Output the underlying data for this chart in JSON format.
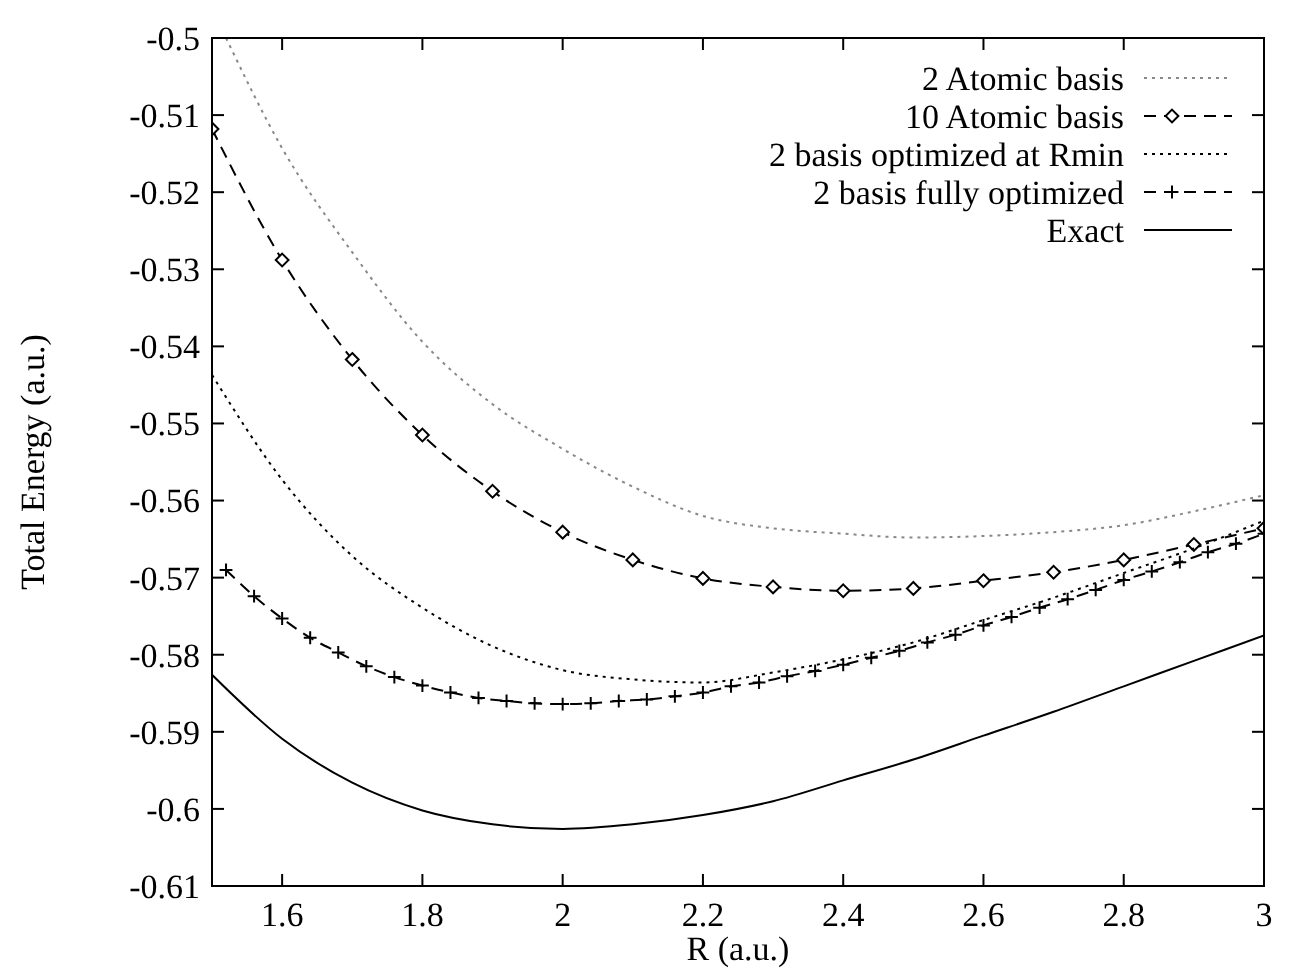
{
  "chart_data": {
    "type": "line",
    "xlabel": "R (a.u.)",
    "ylabel": "Total Energy (a.u.)",
    "xlim": [
      1.5,
      3
    ],
    "xticks": [
      1.6,
      1.8,
      2,
      2.2,
      2.4,
      2.6,
      2.8,
      3
    ],
    "ylim": [
      -0.61,
      -0.5
    ],
    "yticks": [
      -0.61,
      -0.6,
      -0.59,
      -0.58,
      -0.57,
      -0.56,
      -0.55,
      -0.54,
      -0.53,
      -0.52,
      -0.51,
      -0.5
    ],
    "grid": false,
    "legend": "top right",
    "series": [
      {
        "name": "2 Atomic basis",
        "color": "#888888",
        "line_style": "dotted",
        "marker": "none",
        "x": [
          1.52,
          1.6,
          1.7,
          1.8,
          1.9,
          2.0,
          2.1,
          2.2,
          2.3,
          2.4,
          2.5,
          2.6,
          2.7,
          2.8,
          2.9,
          3.0
        ],
        "values": [
          -0.5,
          -0.5143,
          -0.5278,
          -0.5394,
          -0.5475,
          -0.5533,
          -0.5582,
          -0.562,
          -0.5636,
          -0.5643,
          -0.5648,
          -0.5646,
          -0.5641,
          -0.5632,
          -0.5614,
          -0.5593
        ]
      },
      {
        "name": "10 Atomic basis",
        "color": "#000000",
        "line_style": "dashed",
        "marker": "diamond",
        "x": [
          1.5,
          1.6,
          1.7,
          1.8,
          1.9,
          2.0,
          2.1,
          2.2,
          2.3,
          2.4,
          2.5,
          2.6,
          2.7,
          2.8,
          2.9,
          3.0
        ],
        "values": [
          -0.5118,
          -0.5288,
          -0.5417,
          -0.5515,
          -0.5588,
          -0.5641,
          -0.5677,
          -0.5701,
          -0.5712,
          -0.5717,
          -0.5714,
          -0.5704,
          -0.5693,
          -0.5677,
          -0.5657,
          -0.5636
        ]
      },
      {
        "name": "2 basis optimized at Rmin",
        "color": "#000000",
        "line_style": "dotted",
        "marker": "none",
        "x": [
          1.5,
          1.6,
          1.7,
          1.8,
          1.9,
          2.0,
          2.1,
          2.2,
          2.3,
          2.4,
          2.5,
          2.6,
          2.7,
          2.8,
          2.9,
          3.0
        ],
        "values": [
          -0.5437,
          -0.5573,
          -0.5672,
          -0.5739,
          -0.5789,
          -0.582,
          -0.5832,
          -0.5836,
          -0.5823,
          -0.5806,
          -0.5784,
          -0.5755,
          -0.5726,
          -0.5694,
          -0.5662,
          -0.5626
        ]
      },
      {
        "name": "2 basis fully optimized",
        "color": "#000000",
        "line_style": "dashed",
        "marker": "cross",
        "x": [
          1.52,
          1.56,
          1.6,
          1.64,
          1.68,
          1.72,
          1.76,
          1.8,
          1.84,
          1.88,
          1.92,
          1.96,
          2.0,
          2.04,
          2.08,
          2.12,
          2.16,
          2.2,
          2.24,
          2.28,
          2.32,
          2.36,
          2.4,
          2.44,
          2.48,
          2.52,
          2.56,
          2.6,
          2.64,
          2.68,
          2.72,
          2.76,
          2.8,
          2.84,
          2.88,
          2.92,
          2.96,
          3.0
        ],
        "values": [
          -0.569,
          -0.5724,
          -0.5753,
          -0.5778,
          -0.5797,
          -0.5815,
          -0.5829,
          -0.584,
          -0.5849,
          -0.5856,
          -0.586,
          -0.5863,
          -0.5864,
          -0.5863,
          -0.586,
          -0.5858,
          -0.5854,
          -0.5849,
          -0.5841,
          -0.5836,
          -0.5828,
          -0.5821,
          -0.5813,
          -0.5804,
          -0.5795,
          -0.5784,
          -0.5774,
          -0.5762,
          -0.5751,
          -0.5739,
          -0.5728,
          -0.5716,
          -0.5703,
          -0.5692,
          -0.568,
          -0.5667,
          -0.5656,
          -0.5643
        ]
      },
      {
        "name": "Exact",
        "color": "#000000",
        "line_style": "solid",
        "marker": "none",
        "x": [
          1.5,
          1.6,
          1.7,
          1.8,
          1.9,
          2.0,
          2.1,
          2.2,
          2.3,
          2.4,
          2.5,
          2.6,
          2.7,
          2.8,
          2.9,
          3.0
        ],
        "values": [
          -0.5826,
          -0.5909,
          -0.5966,
          -0.6002,
          -0.602,
          -0.6026,
          -0.602,
          -0.6008,
          -0.599,
          -0.5963,
          -0.5936,
          -0.5905,
          -0.5874,
          -0.5841,
          -0.5808,
          -0.5775
        ]
      }
    ]
  }
}
